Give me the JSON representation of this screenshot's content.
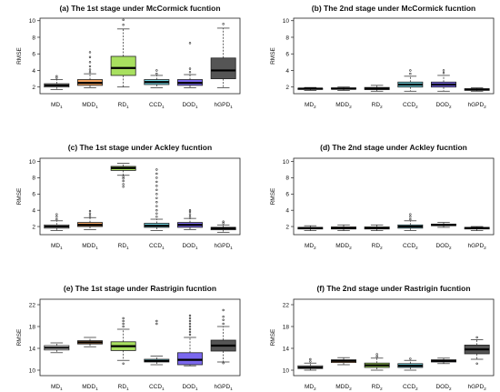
{
  "chart_data": [
    {
      "type": "boxplot",
      "title": "(a) The 1st stage under McCormick fucntion",
      "ylabel": "RMSE",
      "ylim": [
        1.2,
        10.3
      ],
      "yticks": [
        2,
        4,
        6,
        8,
        10
      ],
      "categories": [
        {
          "base": "MD",
          "sub": "1"
        },
        {
          "base": "MDD",
          "sub": "1"
        },
        {
          "base": "RD",
          "sub": "1"
        },
        {
          "base": "CCD",
          "sub": "1"
        },
        {
          "base": "DOD",
          "sub": "1"
        },
        {
          "base": "hGPD",
          "sub": "1"
        }
      ],
      "boxes": [
        {
          "min": 1.7,
          "q1": 2.0,
          "median": 2.2,
          "q3": 2.4,
          "max": 2.9,
          "color": "#ffffff",
          "outliers": [
            3.1,
            3.3
          ]
        },
        {
          "min": 1.9,
          "q1": 2.2,
          "median": 2.5,
          "q3": 2.9,
          "max": 3.6,
          "color": "#f4a460",
          "outliers": [
            3.8,
            4.1,
            4.5,
            5.0,
            5.6,
            6.2
          ]
        },
        {
          "min": 2.0,
          "q1": 3.4,
          "median": 4.3,
          "q3": 5.7,
          "max": 9.0,
          "color": "#a8e05f",
          "outliers": [
            9.5,
            10.1
          ]
        },
        {
          "min": 1.9,
          "q1": 2.3,
          "median": 2.6,
          "q3": 2.9,
          "max": 3.4,
          "color": "#6fd3e0",
          "outliers": [
            3.6,
            4.0
          ]
        },
        {
          "min": 1.9,
          "q1": 2.2,
          "median": 2.5,
          "q3": 2.9,
          "max": 3.5,
          "color": "#7b68ee",
          "outliers": [
            3.8,
            4.2,
            7.3
          ]
        },
        {
          "min": 1.9,
          "q1": 3.0,
          "median": 4.0,
          "q3": 5.5,
          "max": 9.1,
          "color": "#555555",
          "outliers": [
            9.6
          ]
        }
      ]
    },
    {
      "type": "boxplot",
      "title": "(b) The 2nd stage under McCormick fucntion",
      "ylabel": "RMSE",
      "ylim": [
        1.2,
        10.3
      ],
      "yticks": [
        2,
        4,
        6,
        8,
        10
      ],
      "categories": [
        {
          "base": "MD",
          "sub": "2"
        },
        {
          "base": "MDD",
          "sub": "2"
        },
        {
          "base": "RD",
          "sub": "2"
        },
        {
          "base": "CCD",
          "sub": "2"
        },
        {
          "base": "DOD",
          "sub": "2"
        },
        {
          "base": "hGPD",
          "sub": "2"
        }
      ],
      "boxes": [
        {
          "min": 1.6,
          "q1": 1.75,
          "median": 1.8,
          "q3": 1.85,
          "max": 1.95,
          "color": "#ffffff",
          "outliers": []
        },
        {
          "min": 1.6,
          "q1": 1.75,
          "median": 1.8,
          "q3": 1.9,
          "max": 2.0,
          "color": "#f4a460",
          "outliers": []
        },
        {
          "min": 1.5,
          "q1": 1.7,
          "median": 1.8,
          "q3": 1.95,
          "max": 2.2,
          "color": "#a8e05f",
          "outliers": []
        },
        {
          "min": 1.5,
          "q1": 2.0,
          "median": 2.3,
          "q3": 2.6,
          "max": 3.3,
          "color": "#6fd3e0",
          "outliers": [
            3.6,
            4.0
          ]
        },
        {
          "min": 1.5,
          "q1": 2.0,
          "median": 2.3,
          "q3": 2.6,
          "max": 3.4,
          "color": "#7b68ee",
          "outliers": [
            3.7,
            4.0
          ]
        },
        {
          "min": 1.5,
          "q1": 1.6,
          "median": 1.7,
          "q3": 1.8,
          "max": 1.9,
          "color": "#555555",
          "outliers": []
        }
      ]
    },
    {
      "type": "boxplot",
      "title": "(c) The 1st stage under Ackley fucntion",
      "ylabel": "RMSE",
      "ylim": [
        1.0,
        10.4
      ],
      "yticks": [
        2,
        4,
        6,
        8,
        10
      ],
      "categories": [
        {
          "base": "MD",
          "sub": "1"
        },
        {
          "base": "MDD",
          "sub": "1"
        },
        {
          "base": "RD",
          "sub": "1"
        },
        {
          "base": "CCD",
          "sub": "1"
        },
        {
          "base": "DOD",
          "sub": "1"
        },
        {
          "base": "hGPD",
          "sub": "1"
        }
      ],
      "boxes": [
        {
          "min": 1.5,
          "q1": 1.8,
          "median": 2.0,
          "q3": 2.2,
          "max": 2.7,
          "color": "#ffffff",
          "outliers": [
            2.9,
            3.2,
            3.5
          ]
        },
        {
          "min": 1.6,
          "q1": 2.0,
          "median": 2.2,
          "q3": 2.5,
          "max": 3.1,
          "color": "#f4a460",
          "outliers": [
            3.3,
            3.6,
            3.9
          ]
        },
        {
          "min": 8.3,
          "q1": 8.9,
          "median": 9.2,
          "q3": 9.4,
          "max": 9.8,
          "color": "#a8e05f",
          "outliers": [
            6.9,
            7.2,
            7.6,
            7.9,
            8.1
          ]
        },
        {
          "min": 1.5,
          "q1": 1.9,
          "median": 2.1,
          "q3": 2.4,
          "max": 2.9,
          "color": "#6fd3e0",
          "outliers": [
            3.2,
            3.6,
            4.0,
            4.5,
            5.0,
            5.5,
            6.0,
            6.5,
            7.0,
            7.5,
            8.0,
            8.5,
            9.0
          ]
        },
        {
          "min": 1.6,
          "q1": 1.9,
          "median": 2.2,
          "q3": 2.5,
          "max": 3.0,
          "color": "#7b68ee",
          "outliers": [
            3.2,
            3.5,
            3.8,
            4.0
          ]
        },
        {
          "min": 1.3,
          "q1": 1.6,
          "median": 1.8,
          "q3": 1.9,
          "max": 2.2,
          "color": "#555555",
          "outliers": [
            2.4,
            2.6
          ]
        }
      ]
    },
    {
      "type": "boxplot",
      "title": "(d) The 2nd stage under Ackley fucntion",
      "ylabel": "RMSE",
      "ylim": [
        1.0,
        10.4
      ],
      "yticks": [
        2,
        4,
        6,
        8,
        10
      ],
      "categories": [
        {
          "base": "MD",
          "sub": "2"
        },
        {
          "base": "MDD",
          "sub": "2"
        },
        {
          "base": "RD",
          "sub": "2"
        },
        {
          "base": "CCD",
          "sub": "2"
        },
        {
          "base": "DOD",
          "sub": "2"
        },
        {
          "base": "hGPD",
          "sub": "2"
        }
      ],
      "boxes": [
        {
          "min": 1.5,
          "q1": 1.7,
          "median": 1.8,
          "q3": 1.9,
          "max": 2.1,
          "color": "#ffffff",
          "outliers": []
        },
        {
          "min": 1.5,
          "q1": 1.7,
          "median": 1.8,
          "q3": 1.95,
          "max": 2.2,
          "color": "#f4a460",
          "outliers": []
        },
        {
          "min": 1.5,
          "q1": 1.7,
          "median": 1.8,
          "q3": 1.95,
          "max": 2.2,
          "color": "#a8e05f",
          "outliers": []
        },
        {
          "min": 1.5,
          "q1": 1.8,
          "median": 2.0,
          "q3": 2.2,
          "max": 2.7,
          "color": "#6fd3e0",
          "outliers": [
            2.9,
            3.2,
            3.5
          ]
        },
        {
          "min": 1.9,
          "q1": 2.1,
          "median": 2.2,
          "q3": 2.3,
          "max": 2.5,
          "color": "#7b68ee",
          "outliers": []
        },
        {
          "min": 1.5,
          "q1": 1.7,
          "median": 1.8,
          "q3": 1.9,
          "max": 2.0,
          "color": "#555555",
          "outliers": []
        }
      ]
    },
    {
      "type": "boxplot",
      "title": "(e) The 1st stage under Rastrigin fucntion",
      "ylabel": "RMSE",
      "ylim": [
        9.0,
        23.0
      ],
      "yticks": [
        10,
        14,
        18,
        22
      ],
      "categories": [
        {
          "base": "MD",
          "sub": "1"
        },
        {
          "base": "MDD",
          "sub": "1"
        },
        {
          "base": "RD",
          "sub": "1"
        },
        {
          "base": "CCD",
          "sub": "1"
        },
        {
          "base": "DOD",
          "sub": "1"
        },
        {
          "base": "hGPD",
          "sub": "1"
        }
      ],
      "boxes": [
        {
          "min": 13.2,
          "q1": 13.7,
          "median": 14.1,
          "q3": 14.5,
          "max": 15.0,
          "color": "#ffffff",
          "outliers": []
        },
        {
          "min": 14.3,
          "q1": 14.8,
          "median": 15.1,
          "q3": 15.4,
          "max": 16.0,
          "color": "#f4a460",
          "outliers": []
        },
        {
          "min": 11.8,
          "q1": 13.6,
          "median": 14.4,
          "q3": 15.2,
          "max": 17.5,
          "color": "#a8e05f",
          "outliers": [
            11.2,
            18.0,
            18.5,
            19.0,
            19.5
          ]
        },
        {
          "min": 11.0,
          "q1": 11.5,
          "median": 11.7,
          "q3": 12.0,
          "max": 12.6,
          "color": "#6fd3e0",
          "outliers": [
            18.5,
            19.0
          ]
        },
        {
          "min": 10.8,
          "q1": 11.0,
          "median": 11.9,
          "q3": 13.2,
          "max": 16.0,
          "color": "#7b68ee",
          "outliers": [
            16.5,
            17.0,
            17.5,
            18.0,
            18.5,
            19.0,
            19.5,
            20.0
          ]
        },
        {
          "min": 11.5,
          "q1": 13.5,
          "median": 14.5,
          "q3": 15.5,
          "max": 18.0,
          "color": "#555555",
          "outliers": [
            18.5,
            19.2,
            19.8,
            21.0,
            11.3
          ]
        }
      ]
    },
    {
      "type": "boxplot",
      "title": "(f) The 2nd stage under Rastrigin fucntion",
      "ylabel": "RMSE",
      "ylim": [
        9.0,
        23.0
      ],
      "yticks": [
        10,
        14,
        18,
        22
      ],
      "categories": [
        {
          "base": "MD",
          "sub": "2"
        },
        {
          "base": "MDD",
          "sub": "2"
        },
        {
          "base": "RD",
          "sub": "2"
        },
        {
          "base": "CCD",
          "sub": "2"
        },
        {
          "base": "DOD",
          "sub": "2"
        },
        {
          "base": "hGPD",
          "sub": "2"
        }
      ],
      "boxes": [
        {
          "min": 10.0,
          "q1": 10.3,
          "median": 10.5,
          "q3": 10.8,
          "max": 11.3,
          "color": "#ffffff",
          "outliers": [
            11.6,
            12.0
          ]
        },
        {
          "min": 11.0,
          "q1": 11.4,
          "median": 11.7,
          "q3": 11.9,
          "max": 12.3,
          "color": "#f4a460",
          "outliers": []
        },
        {
          "min": 10.0,
          "q1": 10.5,
          "median": 10.9,
          "q3": 11.3,
          "max": 12.2,
          "color": "#a8e05f",
          "outliers": [
            12.5,
            12.9
          ]
        },
        {
          "min": 10.0,
          "q1": 10.5,
          "median": 10.8,
          "q3": 11.2,
          "max": 11.8,
          "color": "#6fd3e0",
          "outliers": [
            12.1
          ]
        },
        {
          "min": 11.2,
          "q1": 11.5,
          "median": 11.7,
          "q3": 11.9,
          "max": 12.2,
          "color": "#7b68ee",
          "outliers": []
        },
        {
          "min": 12.0,
          "q1": 13.0,
          "median": 13.8,
          "q3": 14.6,
          "max": 15.6,
          "color": "#555555",
          "outliers": [
            11.2,
            16.0
          ]
        }
      ]
    }
  ]
}
